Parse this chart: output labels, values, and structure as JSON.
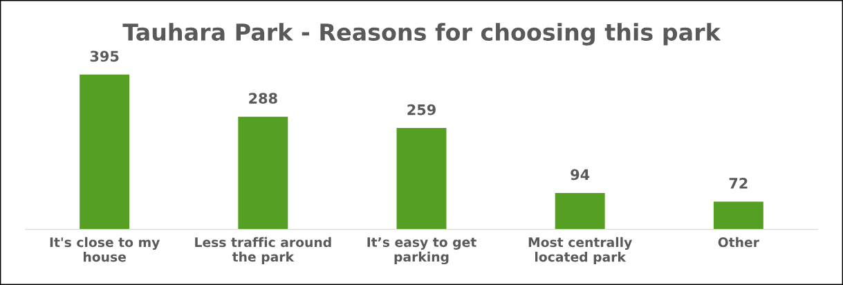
{
  "chart_data": {
    "type": "bar",
    "title": "Tauhara Park - Reasons for choosing this park",
    "categories": [
      "It's close to my house",
      "Less traffic around the park",
      "It’s easy to get parking",
      "Most centrally located park",
      "Other"
    ],
    "values": [
      395,
      288,
      259,
      94,
      72
    ],
    "color": "#55a023",
    "data_labels": true,
    "grid": false,
    "legend": false
  }
}
